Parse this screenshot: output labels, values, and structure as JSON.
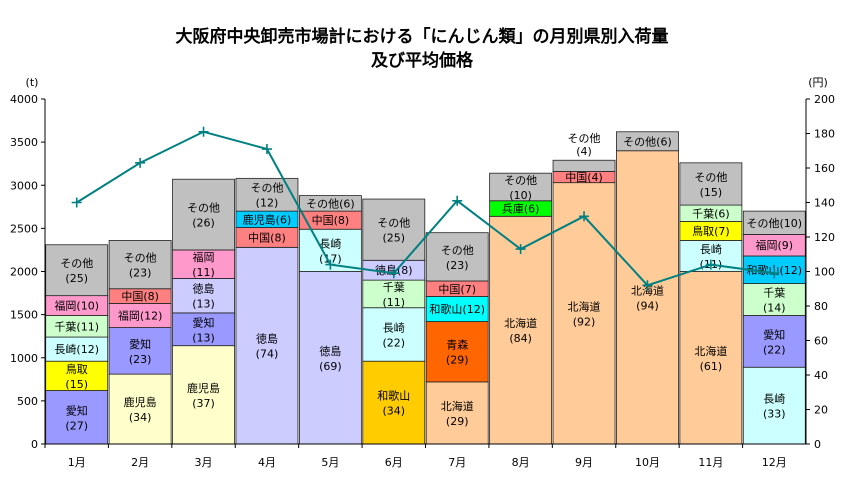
{
  "chart_data": {
    "type": "bar",
    "stacked": true,
    "title_line1": "大阪府中央卸売市場計における「にんじん類」の月別県別入荷量",
    "title_line2": "及び平均価格",
    "y_left_unit": "(t)",
    "y_right_unit": "(円)",
    "ylim_left": [
      0,
      4000
    ],
    "ylim_right": [
      0,
      200
    ],
    "yticks_left": [
      0,
      500,
      1000,
      1500,
      2000,
      2500,
      3000,
      3500,
      4000
    ],
    "yticks_right": [
      0,
      20,
      40,
      60,
      80,
      100,
      120,
      140,
      160,
      180,
      200
    ],
    "categories": [
      "1月",
      "2月",
      "3月",
      "4月",
      "5月",
      "6月",
      "7月",
      "8月",
      "9月",
      "10月",
      "11月",
      "12月"
    ],
    "colors": {
      "愛知": "#9999ff",
      "鳥取": "#ffff00",
      "長崎": "#ccffff",
      "千葉": "#ccffcc",
      "福岡": "#ff99cc",
      "中国": "#ff8080",
      "鹿児島": "#ffffcc",
      "徳島": "#ccccff",
      "和歌山": "#ffcc00",
      "北海道": "#ffcc99",
      "青森": "#ff6600",
      "兵庫": "#00ff00",
      "その他": "#c0c0c0",
      "鹿児島4": "#00ccff",
      "和歌山12": "#00ccff",
      "line": "#008080"
    },
    "bars": [
      {
        "month": "1月",
        "segments": [
          {
            "name": "愛知",
            "share": "(27)",
            "value": 620,
            "color": "#9999ff"
          },
          {
            "name": "鳥取",
            "share": "(15)",
            "value": 340,
            "color": "#ffff00"
          },
          {
            "name": "長崎",
            "share": "(12)",
            "value": 280,
            "color": "#ccffff"
          },
          {
            "name": "千葉",
            "share": "(11)",
            "value": 250,
            "color": "#ccffcc"
          },
          {
            "name": "福岡",
            "share": "(10)",
            "value": 230,
            "color": "#ff99cc"
          },
          {
            "name": "その他",
            "share": "(25)",
            "value": 590,
            "color": "#c0c0c0"
          }
        ]
      },
      {
        "month": "2月",
        "segments": [
          {
            "name": "鹿児島",
            "share": "(34)",
            "value": 810,
            "color": "#ffffcc"
          },
          {
            "name": "愛知",
            "share": "(23)",
            "value": 540,
            "color": "#9999ff"
          },
          {
            "name": "福岡",
            "share": "(12)",
            "value": 280,
            "color": "#ff99cc"
          },
          {
            "name": "中国",
            "share": "(8)",
            "value": 170,
            "color": "#ff8080"
          },
          {
            "name": "その他",
            "share": "(23)",
            "value": 560,
            "color": "#c0c0c0"
          }
        ]
      },
      {
        "month": "3月",
        "segments": [
          {
            "name": "鹿児島",
            "share": "(37)",
            "value": 1140,
            "color": "#ffffcc"
          },
          {
            "name": "愛知",
            "share": "(13)",
            "value": 380,
            "color": "#9999ff"
          },
          {
            "name": "徳島",
            "share": "(13)",
            "value": 400,
            "color": "#ccccff"
          },
          {
            "name": "福岡",
            "share": "(11)",
            "value": 330,
            "color": "#ff99cc"
          },
          {
            "name": "その他",
            "share": "(26)",
            "value": 820,
            "color": "#c0c0c0"
          }
        ]
      },
      {
        "month": "4月",
        "segments": [
          {
            "name": "徳島",
            "share": "(74)",
            "value": 2280,
            "color": "#ccccff"
          },
          {
            "name": "中国",
            "share": "(8)",
            "value": 230,
            "color": "#ff8080"
          },
          {
            "name": "鹿児島",
            "share": "(6)",
            "value": 190,
            "color": "#00ccff",
            "inline": true
          },
          {
            "name": "その他",
            "share": "(12)",
            "value": 380,
            "color": "#c0c0c0"
          }
        ]
      },
      {
        "month": "5月",
        "segments": [
          {
            "name": "徳島",
            "share": "(69)",
            "value": 2000,
            "color": "#ccccff"
          },
          {
            "name": "長崎",
            "share": "(17)",
            "value": 490,
            "color": "#ccffff"
          },
          {
            "name": "中国",
            "share": "(8)",
            "value": 210,
            "color": "#ff8080",
            "inline": true
          },
          {
            "name": "その他",
            "share": "(6)",
            "value": 180,
            "color": "#c0c0c0",
            "inline": true
          }
        ]
      },
      {
        "month": "6月",
        "segments": [
          {
            "name": "和歌山",
            "share": "(34)",
            "value": 960,
            "color": "#ffcc00"
          },
          {
            "name": "長崎",
            "share": "(22)",
            "value": 620,
            "color": "#ccffff"
          },
          {
            "name": "千葉",
            "share": "(11)",
            "value": 320,
            "color": "#ccffcc"
          },
          {
            "name": "徳島",
            "share": "(8)",
            "value": 230,
            "color": "#ccccff",
            "inline": true
          },
          {
            "name": "その他",
            "share": "(25)",
            "value": 710,
            "color": "#c0c0c0"
          }
        ]
      },
      {
        "month": "7月",
        "segments": [
          {
            "name": "北海道",
            "share": "(29)",
            "value": 720,
            "color": "#ffcc99"
          },
          {
            "name": "青森",
            "share": "(29)",
            "value": 700,
            "color": "#ff6600"
          },
          {
            "name": "和歌山",
            "share": "(12)",
            "value": 290,
            "color": "#00ffff",
            "inline": true
          },
          {
            "name": "中国",
            "share": "(7)",
            "value": 180,
            "color": "#ff8080",
            "inline": true
          },
          {
            "name": "その他",
            "share": "(23)",
            "value": 560,
            "color": "#c0c0c0"
          }
        ]
      },
      {
        "month": "8月",
        "segments": [
          {
            "name": "北海道",
            "share": "(84)",
            "value": 2640,
            "color": "#ffcc99"
          },
          {
            "name": "兵庫",
            "share": "(6)",
            "value": 180,
            "color": "#00ff00",
            "inline": true
          },
          {
            "name": "その他",
            "share": "(10)",
            "value": 320,
            "color": "#c0c0c0"
          }
        ]
      },
      {
        "month": "9月",
        "segments": [
          {
            "name": "北海道",
            "share": "(92)",
            "value": 3030,
            "color": "#ffcc99"
          },
          {
            "name": "中国",
            "share": "(4)",
            "value": 130,
            "color": "#ff8080",
            "inline": true
          },
          {
            "name": "その他",
            "share": "(4)",
            "value": 130,
            "color": "#c0c0c0",
            "above": true
          }
        ]
      },
      {
        "month": "10月",
        "segments": [
          {
            "name": "北海道",
            "share": "(94)",
            "value": 3400,
            "color": "#ffcc99"
          },
          {
            "name": "その他",
            "share": "(6)",
            "value": 220,
            "color": "#c0c0c0",
            "inline": true
          }
        ]
      },
      {
        "month": "11月",
        "segments": [
          {
            "name": "北海道",
            "share": "(61)",
            "value": 2000,
            "color": "#ffcc99"
          },
          {
            "name": "長崎",
            "share": "(11)",
            "value": 360,
            "color": "#ccffff"
          },
          {
            "name": "鳥取",
            "share": "(7)",
            "value": 220,
            "color": "#ffff00",
            "inline": true
          },
          {
            "name": "千葉",
            "share": "(6)",
            "value": 190,
            "color": "#ccffcc",
            "inline": true
          },
          {
            "name": "その他",
            "share": "(15)",
            "value": 490,
            "color": "#c0c0c0"
          }
        ]
      },
      {
        "month": "12月",
        "segments": [
          {
            "name": "長崎",
            "share": "(33)",
            "value": 890,
            "color": "#ccffff"
          },
          {
            "name": "愛知",
            "share": "(22)",
            "value": 600,
            "color": "#9999ff"
          },
          {
            "name": "千葉",
            "share": "(14)",
            "value": 370,
            "color": "#ccffcc"
          },
          {
            "name": "和歌山",
            "share": "(12)",
            "value": 320,
            "color": "#00ccff",
            "inline": true
          },
          {
            "name": "福岡",
            "share": "(9)",
            "value": 250,
            "color": "#ff99cc",
            "inline": true
          },
          {
            "name": "その他",
            "share": "(10)",
            "value": 270,
            "color": "#c0c0c0",
            "inline": true
          }
        ]
      }
    ],
    "price_series": {
      "name": "平均価格",
      "unit": "円",
      "values": [
        140,
        163,
        181,
        171,
        104,
        99,
        141,
        113,
        132,
        92,
        104,
        99
      ]
    }
  }
}
